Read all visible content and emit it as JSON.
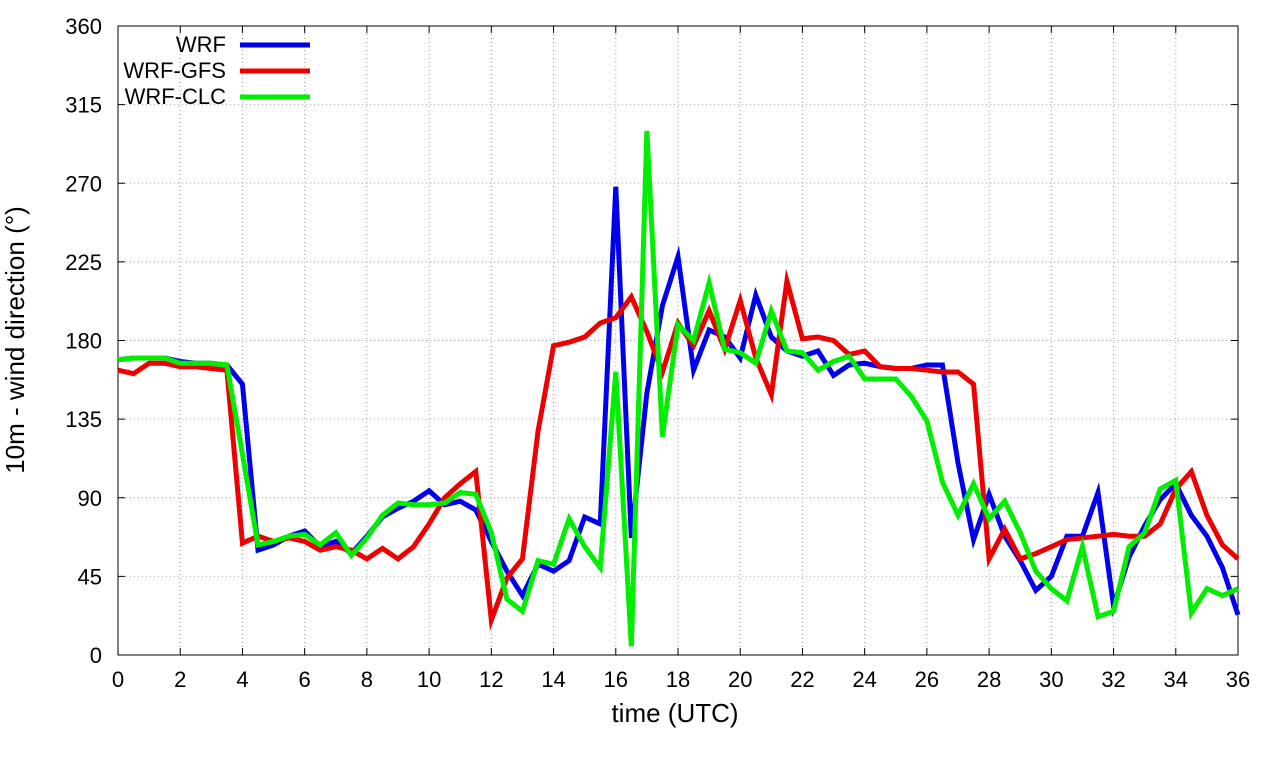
{
  "chart_data": {
    "type": "line",
    "xlabel": "time (UTC)",
    "ylabel": "10m - wind direction (°)",
    "xlim": [
      0,
      36
    ],
    "ylim": [
      0,
      360
    ],
    "xticks": [
      0,
      2,
      4,
      6,
      8,
      10,
      12,
      14,
      16,
      18,
      20,
      22,
      24,
      26,
      28,
      30,
      32,
      34,
      36
    ],
    "yticks": [
      0,
      45,
      90,
      135,
      180,
      225,
      270,
      315,
      360
    ],
    "grid": true,
    "legend_position": "top-left",
    "x": [
      0,
      0.5,
      1,
      1.5,
      2,
      2.5,
      3,
      3.5,
      4,
      4.5,
      5,
      5.5,
      6,
      6.5,
      7,
      7.5,
      8,
      8.5,
      9,
      9.5,
      10,
      10.5,
      11,
      11.5,
      12,
      12.5,
      13,
      13.5,
      14,
      14.5,
      15,
      15.5,
      16,
      16.5,
      17,
      17.5,
      18,
      18.5,
      19,
      19.5,
      20,
      20.5,
      21,
      21.5,
      22,
      22.5,
      23,
      23.5,
      24,
      24.5,
      25,
      25.5,
      26,
      26.5,
      27,
      27.5,
      28,
      28.5,
      29,
      29.5,
      30,
      30.5,
      31,
      31.5,
      32,
      32.5,
      33,
      33.5,
      34,
      34.5,
      35,
      35.5,
      36
    ],
    "series": [
      {
        "name": "WRF",
        "color": "#0000ee",
        "values": [
          169,
          170,
          170,
          170,
          168,
          167,
          167,
          166,
          155,
          60,
          63,
          68,
          71,
          62,
          65,
          58,
          68,
          79,
          84,
          88,
          94,
          86,
          88,
          83,
          65,
          48,
          34,
          52,
          48,
          54,
          79,
          75,
          268,
          67,
          150,
          200,
          228,
          163,
          186,
          182,
          170,
          206,
          182,
          174,
          171,
          174,
          160,
          166,
          167,
          165,
          164,
          164,
          166,
          166,
          110,
          66,
          92,
          68,
          54,
          37,
          45,
          68,
          68,
          93,
          28,
          56,
          74,
          89,
          98,
          80,
          68,
          50,
          23
        ]
      },
      {
        "name": "WRF-GFS",
        "color": "#ee0000",
        "values": [
          163,
          161,
          167,
          167,
          165,
          165,
          164,
          163,
          64,
          68,
          65,
          67,
          65,
          60,
          62,
          60,
          55,
          61,
          55,
          62,
          75,
          90,
          98,
          105,
          20,
          44,
          55,
          128,
          177,
          179,
          182,
          190,
          193,
          205,
          185,
          162,
          190,
          177,
          197,
          175,
          203,
          170,
          149,
          214,
          181,
          182,
          180,
          172,
          174,
          165,
          164,
          164,
          163,
          162,
          162,
          155,
          55,
          72,
          55,
          58,
          62,
          66,
          67,
          68,
          69,
          68,
          68,
          75,
          95,
          105,
          80,
          63,
          55
        ]
      },
      {
        "name": "WRF-CLC",
        "color": "#00ee00",
        "values": [
          169,
          170,
          170,
          170,
          167,
          167,
          167,
          166,
          115,
          63,
          65,
          68,
          69,
          63,
          70,
          57,
          67,
          80,
          87,
          86,
          86,
          87,
          93,
          92,
          70,
          32,
          25,
          54,
          52,
          78,
          62,
          50,
          162,
          5,
          300,
          125,
          189,
          180,
          213,
          175,
          173,
          167,
          197,
          174,
          173,
          163,
          168,
          171,
          158,
          158,
          158,
          148,
          134,
          99,
          80,
          98,
          78,
          88,
          70,
          48,
          38,
          31,
          62,
          22,
          25,
          62,
          70,
          95,
          100,
          24,
          38,
          34,
          38
        ]
      }
    ]
  }
}
